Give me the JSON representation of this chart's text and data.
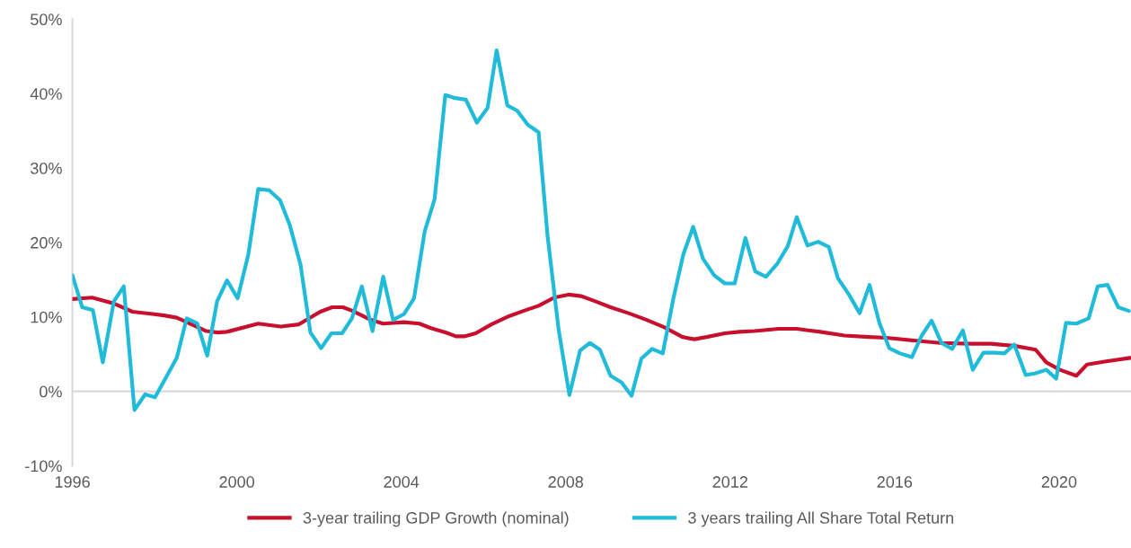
{
  "chart_data": {
    "type": "line",
    "xlim": [
      1996,
      2021.75
    ],
    "xticks": [
      1996,
      2000,
      2004,
      2008,
      2012,
      2016,
      2020
    ],
    "ylim": [
      -10,
      50
    ],
    "yticks": [
      {
        "value": -10,
        "label": "-10%"
      },
      {
        "value": 0,
        "label": "0%"
      },
      {
        "value": 10,
        "label": "10%"
      },
      {
        "value": 20,
        "label": "20%"
      },
      {
        "value": 30,
        "label": "30%"
      },
      {
        "value": 40,
        "label": "40%"
      },
      {
        "value": 50,
        "label": "50%"
      }
    ],
    "grid": false,
    "legend": "bottom",
    "marker": "none",
    "line_style": "solid",
    "ref_lines": [
      {
        "axis": "y",
        "value": 0,
        "color": "#d9d9d9"
      }
    ],
    "series": [
      {
        "name": "3-year trailing GDP Growth (nominal)",
        "color": "#c8102e",
        "x": [
          1996.0,
          1996.48,
          1996.74,
          1997.01,
          1997.46,
          1997.95,
          1998.23,
          1998.54,
          1998.78,
          1999.26,
          1999.54,
          1999.76,
          2000.52,
          2001.07,
          2001.51,
          2002.03,
          2002.32,
          2002.58,
          2002.82,
          2003.26,
          2003.56,
          2004.07,
          2004.44,
          2004.72,
          2005.09,
          2005.33,
          2005.55,
          2005.81,
          2006.19,
          2006.62,
          2006.97,
          2007.34,
          2007.72,
          2008.07,
          2008.37,
          2008.72,
          2009.09,
          2009.53,
          2009.97,
          2010.4,
          2010.84,
          2011.13,
          2011.43,
          2011.87,
          2012.22,
          2012.59,
          2013.18,
          2013.62,
          2013.9,
          2014.19,
          2014.78,
          2015.37,
          2015.8,
          2016.52,
          2017.11,
          2017.84,
          2018.34,
          2018.93,
          2019.43,
          2019.69,
          2020.02,
          2020.42,
          2020.68,
          2021.11,
          2021.73
        ],
        "values": [
          12.4,
          12.6,
          12.2,
          11.8,
          10.7,
          10.4,
          10.2,
          9.9,
          9.3,
          8.1,
          7.9,
          8.0,
          9.1,
          8.7,
          9.0,
          10.7,
          11.3,
          11.3,
          10.8,
          9.6,
          9.1,
          9.3,
          9.1,
          8.5,
          7.9,
          7.4,
          7.4,
          7.8,
          9.0,
          10.1,
          10.8,
          11.5,
          12.6,
          13.0,
          12.8,
          12.1,
          11.3,
          10.5,
          9.6,
          8.6,
          7.3,
          7.0,
          7.3,
          7.8,
          8.0,
          8.1,
          8.4,
          8.4,
          8.2,
          8.0,
          7.5,
          7.3,
          7.2,
          6.8,
          6.5,
          6.4,
          6.4,
          6.1,
          5.6,
          3.9,
          2.9,
          2.1,
          3.6,
          4.0,
          4.5
        ]
      },
      {
        "name": "3 years trailing All Share Total Return",
        "color": "#1fbbd9",
        "x": [
          1996.0,
          1996.24,
          1996.5,
          1996.74,
          1997.01,
          1997.25,
          1997.51,
          1997.77,
          1998.01,
          1998.27,
          1998.54,
          1998.78,
          1999.04,
          1999.28,
          1999.52,
          1999.76,
          2000.02,
          2000.28,
          2000.52,
          2000.79,
          2001.05,
          2001.29,
          2001.55,
          2001.79,
          2002.05,
          2002.3,
          2002.56,
          2002.8,
          2003.04,
          2003.3,
          2003.56,
          2003.8,
          2004.07,
          2004.31,
          2004.57,
          2004.81,
          2005.07,
          2005.31,
          2005.57,
          2005.84,
          2006.1,
          2006.32,
          2006.58,
          2006.82,
          2007.08,
          2007.34,
          2007.56,
          2007.83,
          2008.09,
          2008.35,
          2008.59,
          2008.83,
          2009.09,
          2009.36,
          2009.6,
          2009.84,
          2010.1,
          2010.36,
          2010.62,
          2010.86,
          2011.1,
          2011.34,
          2011.61,
          2011.87,
          2012.11,
          2012.37,
          2012.61,
          2012.87,
          2013.14,
          2013.4,
          2013.62,
          2013.88,
          2014.14,
          2014.4,
          2014.62,
          2014.89,
          2015.15,
          2015.39,
          2015.63,
          2015.87,
          2016.13,
          2016.42,
          2016.66,
          2016.9,
          2017.14,
          2017.4,
          2017.66,
          2017.9,
          2018.16,
          2018.45,
          2018.67,
          2018.91,
          2019.19,
          2019.41,
          2019.69,
          2019.93,
          2020.17,
          2020.42,
          2020.72,
          2020.94,
          2021.18,
          2021.44,
          2021.7
        ],
        "values": [
          15.6,
          11.3,
          10.9,
          3.9,
          12.1,
          14.1,
          -2.5,
          -0.4,
          -0.8,
          1.8,
          4.5,
          9.8,
          9.1,
          4.8,
          12.1,
          14.9,
          12.5,
          18.4,
          27.2,
          27.0,
          25.7,
          22.3,
          17.0,
          7.9,
          5.8,
          7.8,
          7.8,
          9.8,
          14.1,
          8.1,
          15.4,
          9.6,
          10.4,
          12.5,
          21.5,
          25.8,
          39.8,
          39.4,
          39.2,
          36.1,
          38.1,
          45.8,
          38.4,
          37.7,
          35.8,
          34.8,
          20.8,
          8.2,
          -0.5,
          5.5,
          6.5,
          5.6,
          2.1,
          1.2,
          -0.6,
          4.4,
          5.7,
          5.1,
          12.5,
          18.4,
          22.1,
          17.8,
          15.6,
          14.5,
          14.5,
          20.6,
          16.1,
          15.4,
          17.1,
          19.5,
          23.4,
          19.6,
          20.1,
          19.4,
          15.2,
          13.0,
          10.5,
          14.3,
          9.2,
          5.8,
          5.1,
          4.6,
          7.5,
          9.5,
          6.5,
          5.7,
          8.2,
          2.9,
          5.2,
          5.2,
          5.1,
          6.3,
          2.2,
          2.4,
          2.9,
          1.7,
          9.2,
          9.1,
          9.8,
          14.1,
          14.3,
          11.3,
          10.8
        ]
      }
    ]
  }
}
